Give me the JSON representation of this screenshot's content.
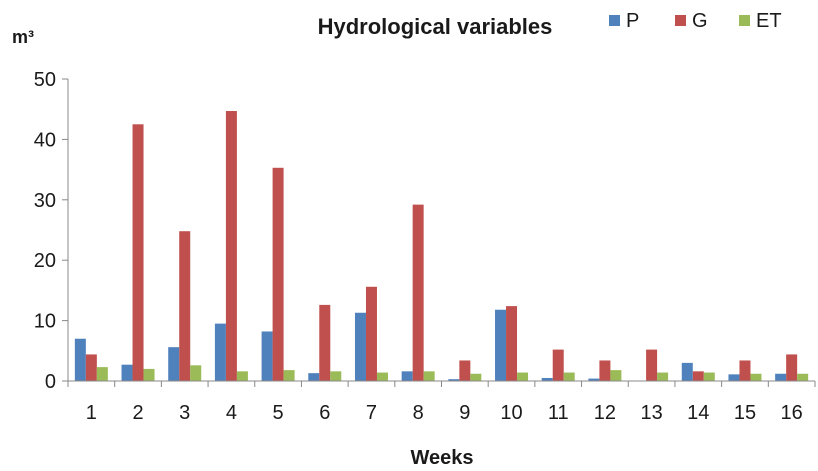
{
  "chart_data": {
    "type": "bar",
    "title": "Hydrological variables",
    "xlabel": "Weeks",
    "ylabel": "m³",
    "ylim": [
      0,
      50
    ],
    "yticks": [
      0,
      10,
      20,
      30,
      40,
      50
    ],
    "legend_position": "top-right",
    "grid": false,
    "categories": [
      "1",
      "2",
      "3",
      "4",
      "5",
      "6",
      "7",
      "8",
      "9",
      "10",
      "11",
      "12",
      "13",
      "14",
      "15",
      "16"
    ],
    "series": [
      {
        "name": "P",
        "color": "#4F81BD",
        "values": [
          7.0,
          2.7,
          5.6,
          9.5,
          8.2,
          1.3,
          11.3,
          1.6,
          0.3,
          11.8,
          0.5,
          0.4,
          0.0,
          3.0,
          1.1,
          1.2
        ]
      },
      {
        "name": "G",
        "color": "#C0504D",
        "values": [
          4.4,
          42.5,
          24.8,
          44.7,
          35.3,
          12.6,
          15.6,
          29.2,
          3.4,
          12.4,
          5.2,
          3.4,
          5.2,
          1.6,
          3.4,
          4.4
        ]
      },
      {
        "name": "ET",
        "color": "#9BBB59",
        "values": [
          2.3,
          2.0,
          2.6,
          1.6,
          1.8,
          1.6,
          1.4,
          1.6,
          1.2,
          1.4,
          1.4,
          1.8,
          1.4,
          1.4,
          1.2,
          1.2
        ]
      }
    ]
  }
}
